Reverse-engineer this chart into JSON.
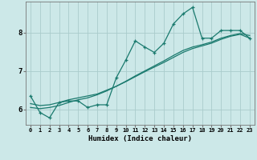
{
  "xlabel": "Humidex (Indice chaleur)",
  "ylabel": "",
  "bg_color": "#cce8e8",
  "grid_color": "#aacccc",
  "line_color": "#1a7a6e",
  "x_data": [
    0,
    1,
    2,
    3,
    4,
    5,
    6,
    7,
    8,
    9,
    10,
    11,
    12,
    13,
    14,
    15,
    16,
    17,
    18,
    19,
    20,
    21,
    22,
    23
  ],
  "y_main": [
    6.35,
    5.92,
    5.78,
    6.18,
    6.22,
    6.22,
    6.05,
    6.12,
    6.12,
    6.82,
    7.28,
    7.78,
    7.62,
    7.48,
    7.72,
    8.22,
    8.48,
    8.65,
    7.85,
    7.85,
    8.05,
    8.05,
    8.05,
    7.85
  ],
  "y_trend1": [
    6.15,
    6.1,
    6.12,
    6.18,
    6.25,
    6.3,
    6.35,
    6.4,
    6.5,
    6.6,
    6.72,
    6.85,
    6.98,
    7.1,
    7.22,
    7.35,
    7.48,
    7.58,
    7.65,
    7.72,
    7.82,
    7.9,
    7.95,
    7.85
  ],
  "y_trend2": [
    6.05,
    6.02,
    6.05,
    6.1,
    6.18,
    6.25,
    6.3,
    6.38,
    6.48,
    6.6,
    6.73,
    6.87,
    7.0,
    7.13,
    7.26,
    7.4,
    7.53,
    7.62,
    7.68,
    7.75,
    7.85,
    7.92,
    7.97,
    7.92
  ],
  "yticks": [
    6,
    7,
    8
  ],
  "xticks": [
    0,
    1,
    2,
    3,
    4,
    5,
    6,
    7,
    8,
    9,
    10,
    11,
    12,
    13,
    14,
    15,
    16,
    17,
    18,
    19,
    20,
    21,
    22,
    23
  ],
  "ylim": [
    5.6,
    8.8
  ],
  "xlim": [
    -0.5,
    23.5
  ],
  "figwidth": 3.2,
  "figheight": 2.0,
  "dpi": 100
}
